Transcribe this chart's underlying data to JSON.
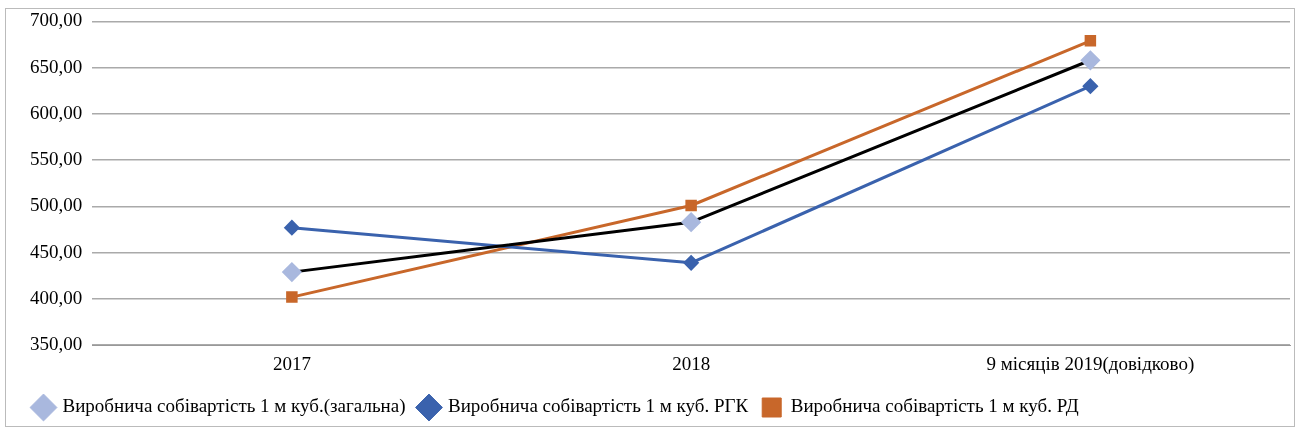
{
  "chart_data": {
    "type": "line",
    "categories": [
      "2017",
      "2018",
      "9 місяців 2019(довідково)"
    ],
    "series": [
      {
        "name": "Виробнича собівартість 1 м куб.(загальна)",
        "color": "#000000",
        "colors": [
          "#a9b8de",
          "#a9b8de",
          "#a9b8de"
        ],
        "marker": "diamond",
        "values": [
          429,
          483,
          658
        ]
      },
      {
        "name": "Виробнича собівартість 1 м куб. РГК",
        "color": "#3a62ad",
        "marker": "diamond",
        "values": [
          477,
          439,
          630
        ]
      },
      {
        "name": "Виробнича собівартість 1 м куб. РД",
        "color": "#c8672a",
        "marker": "square",
        "values": [
          402,
          501,
          679
        ]
      }
    ],
    "ylim": [
      350,
      700
    ],
    "yticks": [
      {
        "value": 350,
        "label": "350,00"
      },
      {
        "value": 400,
        "label": "400,00"
      },
      {
        "value": 450,
        "label": "450,00"
      },
      {
        "value": 500,
        "label": "500,00"
      },
      {
        "value": 550,
        "label": "550,00"
      },
      {
        "value": 600,
        "label": "600,00"
      },
      {
        "value": 650,
        "label": "650,00"
      },
      {
        "value": 700,
        "label": "700,00"
      }
    ],
    "grid": "y",
    "legend": "bottom"
  }
}
